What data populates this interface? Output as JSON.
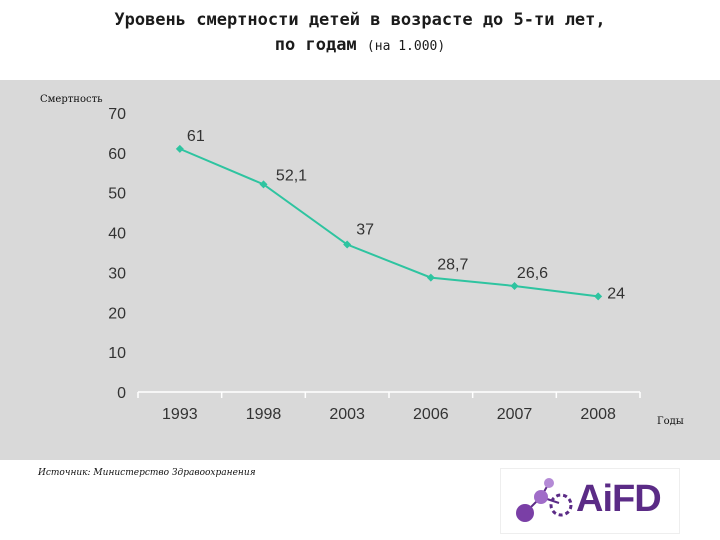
{
  "header": {
    "title_line1": "Уровень смертности детей в возрасте до 5-ти лет,",
    "title_line2": "по годам",
    "title_note": "(на 1.000)"
  },
  "chart_data": {
    "type": "line",
    "categories": [
      "1993",
      "1998",
      "2003",
      "2006",
      "2007",
      "2008"
    ],
    "series": [
      {
        "values": [
          61,
          52.1,
          37,
          28.7,
          26.6,
          24
        ],
        "labels": [
          "61",
          "52,1",
          "37",
          "28,7",
          "26,6",
          "24"
        ]
      }
    ],
    "ylabel": "Смертность",
    "xlabel": "Годы",
    "ylim": [
      0,
      70
    ],
    "yticks": [
      0,
      10,
      20,
      30,
      40,
      50,
      60,
      70
    ],
    "grid": false,
    "line_color": "#2ec4a0",
    "background_color": "#d9d9d9"
  },
  "footer": {
    "source": "Источник: Министерство Здравоохранения"
  },
  "logo": {
    "text": "AiFD",
    "color": "#5b2b86"
  }
}
